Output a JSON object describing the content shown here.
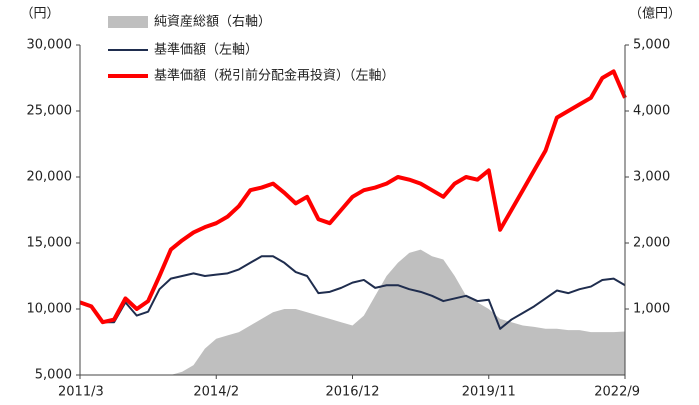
{
  "chart_data": {
    "type": "line",
    "ylabel": "（円）",
    "y2label": "（億円）",
    "categories": [
      "2011/3",
      null,
      null,
      null,
      null,
      null,
      null,
      null,
      null,
      null,
      null,
      null,
      "2014/2",
      null,
      null,
      null,
      null,
      null,
      null,
      null,
      null,
      null,
      null,
      null,
      "2016/12",
      null,
      null,
      null,
      null,
      null,
      null,
      null,
      null,
      null,
      null,
      null,
      "2019/11",
      null,
      null,
      null,
      null,
      null,
      null,
      null,
      null,
      null,
      null,
      null,
      "2022/9"
    ],
    "series": [
      {
        "name": "純資産総額（右軸）",
        "type": "area",
        "axis": "y2",
        "color": "#bfbfbf",
        "values": [
          0,
          0,
          0,
          0,
          0,
          0,
          0,
          0,
          0,
          50,
          150,
          400,
          550,
          600,
          650,
          750,
          850,
          950,
          1000,
          1000,
          950,
          900,
          850,
          800,
          750,
          900,
          1200,
          1500,
          1700,
          1850,
          1900,
          1800,
          1750,
          1500,
          1200,
          1100,
          1000,
          850,
          800,
          750,
          730,
          700,
          700,
          680,
          680,
          650,
          650,
          650,
          660
        ]
      },
      {
        "name": "基準価額（左軸）",
        "type": "line",
        "color": "#1f2d4e",
        "values": [
          10500,
          10200,
          9000,
          9000,
          10500,
          9500,
          9800,
          11500,
          12300,
          12500,
          12700,
          12500,
          12600,
          12700,
          13000,
          13500,
          14000,
          14000,
          13500,
          12800,
          12500,
          11200,
          11300,
          11600,
          12000,
          12200,
          11600,
          11800,
          11800,
          11500,
          11300,
          11000,
          10600,
          10800,
          11000,
          10600,
          10700,
          8500,
          9200,
          9700,
          10200,
          10800,
          11400,
          11200,
          11500,
          11700,
          12200,
          12300,
          11800
        ]
      },
      {
        "name": "基準価額（税引前分配金再投資）（左軸）",
        "type": "line",
        "color": "#ff0000",
        "values": [
          10500,
          10200,
          9000,
          9200,
          10800,
          10000,
          10600,
          12500,
          14500,
          15200,
          15800,
          16200,
          16500,
          17000,
          17800,
          19000,
          19200,
          19500,
          18800,
          18000,
          18500,
          16800,
          16500,
          17500,
          18500,
          19000,
          19200,
          19500,
          20000,
          19800,
          19500,
          19000,
          18500,
          19500,
          20000,
          19800,
          20500,
          16000,
          17500,
          19000,
          20500,
          22000,
          24500,
          25000,
          25500,
          26000,
          27500,
          28000,
          26000
        ]
      }
    ],
    "ylim": [
      5000,
      30000
    ],
    "yticks": [
      {
        "value": 5000,
        "label": "5,000"
      },
      {
        "value": 10000,
        "label": "10,000"
      },
      {
        "value": 15000,
        "label": "15,000"
      },
      {
        "value": 20000,
        "label": "20,000"
      },
      {
        "value": 25000,
        "label": "25,000"
      },
      {
        "value": 30000,
        "label": "30,000"
      }
    ],
    "y2lim": [
      0,
      5000
    ],
    "y2ticks": [
      {
        "value": 1000,
        "label": "1,000"
      },
      {
        "value": 2000,
        "label": "2,000"
      },
      {
        "value": 3000,
        "label": "3,000"
      },
      {
        "value": 4000,
        "label": "4,000"
      },
      {
        "value": 5000,
        "label": "5,000"
      }
    ],
    "grid": false,
    "legend": "upper left"
  }
}
